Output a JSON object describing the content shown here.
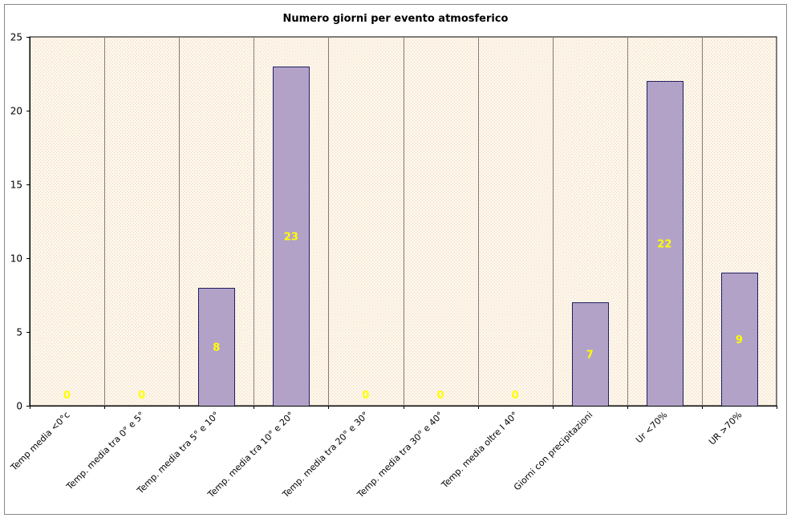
{
  "chart_data": {
    "type": "bar",
    "title": "Numero giorni per evento atmosferico",
    "xlabel": "",
    "ylabel": "",
    "categories": [
      "Temp media <0°c",
      "Temp. media tra 0° e 5°",
      "Temp. media tra 5° e 10°",
      "Temp. media tra 10° e 20°",
      "Temp. media tra 20° e 30°",
      "Temp. media tra 30° e 40°",
      "Temp. media oltre I 40°",
      "Giorni con precipitazioni",
      "Ur <70%",
      "UR >70%"
    ],
    "values": [
      0,
      0,
      8,
      23,
      0,
      0,
      0,
      7,
      22,
      9
    ],
    "ylim": [
      0,
      25
    ],
    "yticks": [
      0,
      5,
      10,
      15,
      20,
      25
    ],
    "grid": "vertical-category-separators",
    "legend": "none",
    "data_labels": [
      "0",
      "0",
      "8",
      "23",
      "0",
      "0",
      "0",
      "7",
      "22",
      "9"
    ],
    "colors": {
      "bar_fill": "#b3a2c8",
      "bar_stroke": "#1f1f5f",
      "plot_background": "#fdf6ea",
      "plot_pattern": "#f0dcc4",
      "data_label": "#ffff00",
      "separator": "#8a7a7a",
      "frame": "#000000",
      "outer_border": "#888888"
    }
  }
}
